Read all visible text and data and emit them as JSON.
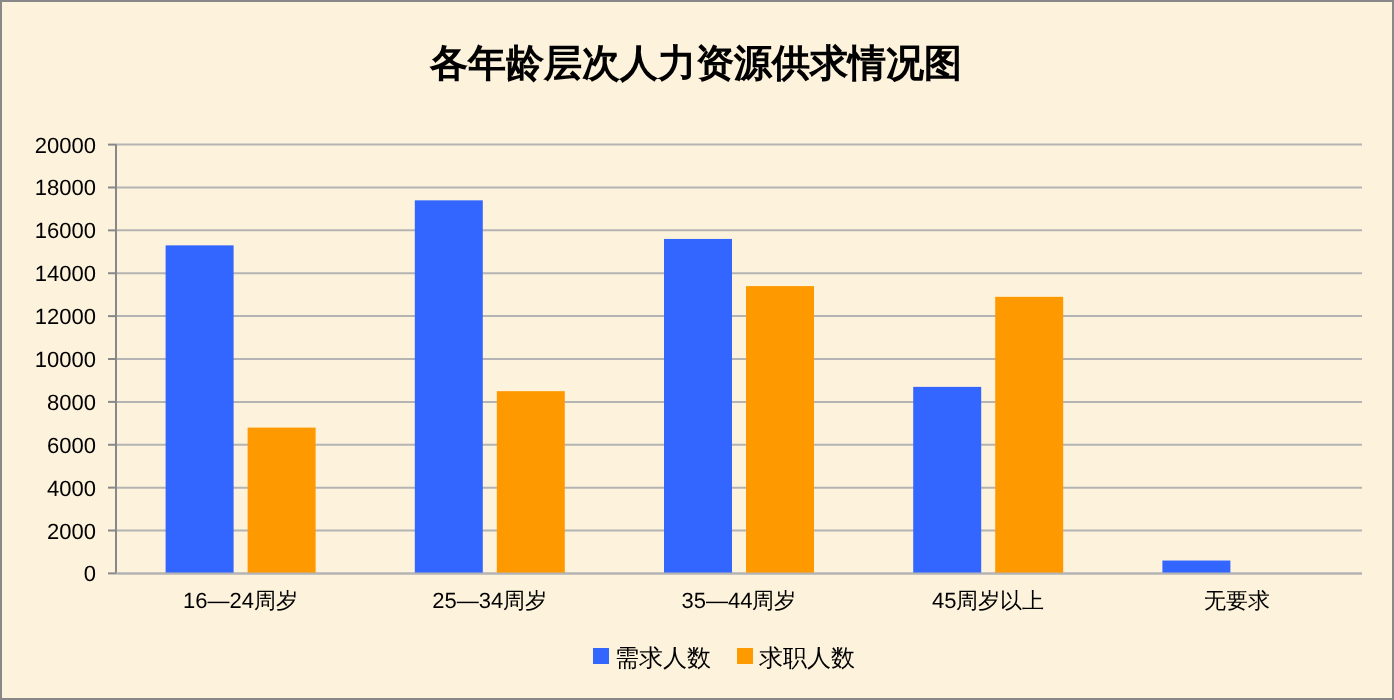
{
  "chart_data": {
    "type": "bar",
    "title": "各年龄层次人力资源供求情况图",
    "categories": [
      "16—24周岁",
      "25—34周岁",
      "35—44周岁",
      "45周岁以上",
      "无要求"
    ],
    "series": [
      {
        "name": "需求人数",
        "color": "#3366ff",
        "values": [
          15300,
          17400,
          15600,
          8700,
          600
        ]
      },
      {
        "name": "求职人数",
        "color": "#ff9900",
        "values": [
          6800,
          8500,
          13400,
          12900,
          0
        ]
      }
    ],
    "ylim": [
      0,
      20000
    ],
    "yticks": [
      0,
      2000,
      4000,
      6000,
      8000,
      10000,
      12000,
      14000,
      16000,
      18000,
      20000
    ],
    "grid": "y",
    "legend": "bottom"
  }
}
